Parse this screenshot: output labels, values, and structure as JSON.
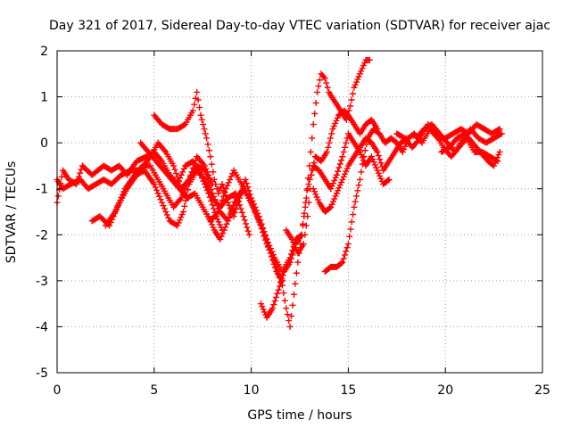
{
  "chart_data": {
    "type": "scatter",
    "title": "Day 321 of 2017, Sidereal Day-to-day VTEC variation (SDTVAR) for receiver ajac",
    "xlabel": "GPS time / hours",
    "ylabel": "SDTVAR / TECUs",
    "xlim": [
      0,
      25
    ],
    "ylim": [
      -5,
      2
    ],
    "xticks": [
      0,
      5,
      10,
      15,
      20,
      25
    ],
    "yticks": [
      -5,
      -4,
      -3,
      -2,
      -1,
      0,
      1,
      2
    ],
    "grid": true,
    "marker": "+",
    "color": "#ff0000",
    "tracks": [
      [
        [
          0,
          -1.3
        ],
        [
          0.3,
          -0.6
        ],
        [
          0.6,
          -0.8
        ],
        [
          1.0,
          -0.9
        ],
        [
          1.3,
          -0.5
        ],
        [
          1.8,
          -0.7
        ],
        [
          2.4,
          -0.5
        ],
        [
          2.8,
          -0.6
        ],
        [
          3.2,
          -0.5
        ],
        [
          3.6,
          -0.7
        ],
        [
          4.1,
          -0.4
        ],
        [
          4.6,
          -0.3
        ],
        [
          5.0,
          -0.2
        ],
        [
          5.4,
          -0.4
        ],
        [
          5.8,
          -0.7
        ],
        [
          6.2,
          -0.9
        ],
        [
          6.6,
          -0.5
        ],
        [
          7.0,
          -0.4
        ],
        [
          7.4,
          -0.7
        ],
        [
          7.8,
          -1.1
        ],
        [
          8.2,
          -1.6
        ],
        [
          8.5,
          -1.9
        ]
      ],
      [
        [
          1.8,
          -1.7
        ],
        [
          2.2,
          -1.6
        ],
        [
          2.7,
          -1.8
        ],
        [
          3.1,
          -1.4
        ],
        [
          3.6,
          -1.0
        ],
        [
          4.1,
          -0.7
        ],
        [
          4.5,
          -0.6
        ],
        [
          5.0,
          -0.9
        ],
        [
          5.4,
          -1.3
        ],
        [
          5.8,
          -1.7
        ],
        [
          6.2,
          -1.8
        ],
        [
          6.5,
          -1.5
        ],
        [
          6.8,
          -0.9
        ],
        [
          7.2,
          -0.6
        ],
        [
          7.6,
          -0.8
        ],
        [
          8.0,
          -1.2
        ],
        [
          8.4,
          -1.4
        ],
        [
          8.8,
          -1.2
        ],
        [
          9.2,
          -1.1
        ],
        [
          9.6,
          -1.6
        ],
        [
          9.9,
          -2.0
        ]
      ],
      [
        [
          2.5,
          -1.8
        ],
        [
          3.0,
          -1.5
        ],
        [
          3.5,
          -1.0
        ],
        [
          4.0,
          -0.7
        ],
        [
          4.4,
          -0.5
        ],
        [
          4.8,
          -0.5
        ],
        [
          5.2,
          -0.8
        ],
        [
          5.6,
          -1.1
        ],
        [
          6.0,
          -1.4
        ],
        [
          6.4,
          -1.2
        ],
        [
          6.8,
          -0.8
        ],
        [
          7.2,
          -0.5
        ],
        [
          7.6,
          -0.6
        ],
        [
          8.0,
          -1.1
        ],
        [
          8.4,
          -1.5
        ],
        [
          8.8,
          -1.7
        ],
        [
          9.2,
          -1.3
        ],
        [
          9.6,
          -1.0
        ],
        [
          10.0,
          -1.3
        ]
      ],
      [
        [
          0,
          -0.8
        ],
        [
          0.3,
          -1.0
        ],
        [
          0.7,
          -0.9
        ],
        [
          1.2,
          -0.8
        ],
        [
          1.6,
          -1.0
        ],
        [
          2.0,
          -0.9
        ],
        [
          2.4,
          -0.8
        ],
        [
          2.8,
          -0.9
        ],
        [
          3.3,
          -0.7
        ],
        [
          3.8,
          -0.6
        ],
        [
          4.3,
          -0.6
        ],
        [
          4.8,
          -0.3
        ],
        [
          5.2,
          0.0
        ],
        [
          5.6,
          -0.2
        ],
        [
          6.0,
          -0.5
        ],
        [
          6.4,
          -1.0
        ],
        [
          6.8,
          -0.8
        ],
        [
          7.2,
          -0.3
        ],
        [
          7.6,
          -0.5
        ],
        [
          8.0,
          -0.9
        ]
      ],
      [
        [
          4.3,
          0.0
        ],
        [
          4.7,
          -0.2
        ],
        [
          5.1,
          -0.4
        ],
        [
          5.5,
          -0.6
        ],
        [
          5.9,
          -0.8
        ],
        [
          6.3,
          -1.0
        ],
        [
          6.7,
          -1.2
        ],
        [
          7.1,
          -1.1
        ],
        [
          7.5,
          -1.4
        ],
        [
          7.9,
          -1.7
        ],
        [
          8.3,
          -1.5
        ],
        [
          8.7,
          -1.0
        ],
        [
          9.1,
          -0.6
        ],
        [
          9.5,
          -0.9
        ],
        [
          9.9,
          -1.2
        ],
        [
          10.3,
          -1.6
        ],
        [
          10.7,
          -2.0
        ],
        [
          11.0,
          -2.4
        ],
        [
          11.3,
          -2.8
        ],
        [
          11.6,
          -3.0
        ]
      ],
      [
        [
          5.0,
          0.6
        ],
        [
          5.4,
          0.4
        ],
        [
          5.8,
          0.3
        ],
        [
          6.2,
          0.3
        ],
        [
          6.6,
          0.4
        ],
        [
          7.0,
          0.7
        ],
        [
          7.2,
          1.1
        ],
        [
          7.4,
          0.6
        ],
        [
          7.7,
          0.1
        ],
        [
          7.9,
          -0.3
        ],
        [
          8.1,
          -0.8
        ],
        [
          8.3,
          -1.1
        ],
        [
          8.5,
          -0.9
        ],
        [
          8.8,
          -1.3
        ],
        [
          9.1,
          -1.6
        ],
        [
          9.4,
          -1.2
        ],
        [
          9.7,
          -0.8
        ],
        [
          10.0,
          -1.2
        ],
        [
          10.4,
          -1.6
        ],
        [
          10.8,
          -2.1
        ],
        [
          11.2,
          -2.5
        ],
        [
          11.6,
          -2.8
        ],
        [
          12.0,
          -2.5
        ],
        [
          12.3,
          -2.1
        ],
        [
          12.6,
          -2.0
        ]
      ],
      [
        [
          7.8,
          -1.6
        ],
        [
          8.1,
          -1.9
        ],
        [
          8.4,
          -2.1
        ],
        [
          8.8,
          -1.7
        ],
        [
          9.2,
          -1.2
        ],
        [
          9.6,
          -1.0
        ],
        [
          10.0,
          -1.3
        ],
        [
          10.4,
          -1.7
        ],
        [
          10.8,
          -2.2
        ],
        [
          11.2,
          -2.6
        ],
        [
          11.6,
          -3.1
        ],
        [
          11.8,
          -3.6
        ],
        [
          12.0,
          -4.0
        ],
        [
          12.2,
          -3.3
        ],
        [
          12.4,
          -2.6
        ],
        [
          12.6,
          -2.0
        ],
        [
          12.8,
          -1.3
        ],
        [
          13.0,
          -0.5
        ],
        [
          13.2,
          0.4
        ],
        [
          13.4,
          1.1
        ],
        [
          13.6,
          1.5
        ],
        [
          13.8,
          1.4
        ],
        [
          14.0,
          1.1
        ],
        [
          14.3,
          0.9
        ],
        [
          14.6,
          0.7
        ],
        [
          14.9,
          0.5
        ],
        [
          15.1,
          0.8
        ],
        [
          15.3,
          1.2
        ],
        [
          15.6,
          1.5
        ],
        [
          15.9,
          1.8
        ],
        [
          16.1,
          1.8
        ]
      ],
      [
        [
          10.5,
          -3.5
        ],
        [
          10.8,
          -3.8
        ],
        [
          11.1,
          -3.6
        ],
        [
          11.4,
          -3.2
        ],
        [
          11.7,
          -2.8
        ],
        [
          12.0,
          -2.6
        ],
        [
          12.3,
          -2.2
        ],
        [
          12.6,
          -2.0
        ],
        [
          12.9,
          -1.0
        ],
        [
          13.2,
          -0.5
        ],
        [
          13.5,
          -0.6
        ],
        [
          13.8,
          -0.8
        ],
        [
          14.1,
          -1.0
        ],
        [
          14.4,
          -0.7
        ],
        [
          14.7,
          -0.3
        ],
        [
          15.0,
          0.2
        ],
        [
          15.3,
          0.0
        ],
        [
          15.6,
          -0.2
        ],
        [
          15.9,
          -0.5
        ],
        [
          16.2,
          -0.3
        ],
        [
          16.5,
          -0.6
        ],
        [
          16.8,
          -0.9
        ],
        [
          17.1,
          -0.8
        ]
      ],
      [
        [
          13.2,
          -1.0
        ],
        [
          13.5,
          -1.3
        ],
        [
          13.8,
          -1.5
        ],
        [
          14.1,
          -1.4
        ],
        [
          14.4,
          -1.1
        ],
        [
          14.7,
          -0.8
        ],
        [
          15.0,
          -0.5
        ],
        [
          15.3,
          -0.3
        ],
        [
          15.6,
          -0.1
        ],
        [
          15.9,
          0.1
        ],
        [
          16.2,
          0.0
        ],
        [
          16.5,
          -0.2
        ],
        [
          16.8,
          -0.6
        ],
        [
          17.1,
          -0.4
        ],
        [
          17.4,
          -0.2
        ],
        [
          17.7,
          0.0
        ],
        [
          18.0,
          0.1
        ]
      ],
      [
        [
          13.8,
          -2.8
        ],
        [
          14.1,
          -2.7
        ],
        [
          14.4,
          -2.7
        ],
        [
          14.7,
          -2.6
        ],
        [
          15.0,
          -2.2
        ],
        [
          15.3,
          -1.4
        ],
        [
          15.6,
          -0.8
        ],
        [
          15.8,
          -0.3
        ],
        [
          16.0,
          0.1
        ],
        [
          16.3,
          0.3
        ],
        [
          16.6,
          0.2
        ],
        [
          16.9,
          0.0
        ],
        [
          17.2,
          0.1
        ],
        [
          17.5,
          0.0
        ],
        [
          17.8,
          -0.2
        ],
        [
          18.1,
          0.1
        ],
        [
          18.4,
          0.2
        ],
        [
          18.8,
          0.0
        ],
        [
          19.2,
          0.3
        ],
        [
          19.6,
          0.1
        ],
        [
          20.0,
          0.1
        ],
        [
          20.4,
          0.2
        ],
        [
          20.8,
          0.3
        ],
        [
          21.2,
          0.2
        ],
        [
          21.6,
          0.4
        ],
        [
          22.0,
          0.3
        ],
        [
          22.4,
          0.2
        ],
        [
          22.8,
          0.3
        ]
      ],
      [
        [
          11.8,
          -1.9
        ],
        [
          12.1,
          -2.1
        ],
        [
          12.4,
          -2.4
        ],
        [
          12.7,
          -2.2
        ],
        [
          12.9,
          -1.6
        ],
        [
          13.1,
          -0.7
        ],
        [
          13.3,
          -0.3
        ],
        [
          13.6,
          -0.4
        ],
        [
          13.9,
          -0.2
        ],
        [
          14.2,
          0.3
        ],
        [
          14.5,
          0.6
        ],
        [
          14.8,
          0.7
        ],
        [
          15.0,
          0.6
        ],
        [
          15.3,
          0.4
        ],
        [
          15.6,
          0.2
        ],
        [
          15.9,
          0.4
        ],
        [
          16.2,
          0.5
        ],
        [
          16.5,
          0.3
        ]
      ],
      [
        [
          17.5,
          0.2
        ],
        [
          17.9,
          0.1
        ],
        [
          18.3,
          -0.1
        ],
        [
          18.7,
          0.1
        ],
        [
          19.1,
          0.4
        ],
        [
          19.5,
          0.2
        ],
        [
          19.9,
          -0.1
        ],
        [
          20.3,
          -0.3
        ],
        [
          20.7,
          -0.1
        ],
        [
          21.1,
          0.1
        ],
        [
          21.5,
          -0.2
        ],
        [
          21.9,
          -0.2
        ],
        [
          22.3,
          -0.3
        ],
        [
          22.7,
          -0.4
        ]
      ],
      [
        [
          18.5,
          0.1
        ],
        [
          18.9,
          0.3
        ],
        [
          19.3,
          0.4
        ],
        [
          19.7,
          0.2
        ],
        [
          20.1,
          0.0
        ],
        [
          20.5,
          -0.2
        ],
        [
          20.9,
          0.1
        ],
        [
          21.3,
          0.3
        ],
        [
          21.7,
          0.1
        ],
        [
          22.1,
          0.0
        ],
        [
          22.5,
          0.1
        ],
        [
          22.9,
          0.2
        ]
      ],
      [
        [
          19.8,
          -0.2
        ],
        [
          20.2,
          -0.1
        ],
        [
          20.6,
          0.1
        ],
        [
          21.0,
          0.2
        ],
        [
          21.4,
          0.0
        ],
        [
          21.8,
          -0.2
        ],
        [
          22.2,
          -0.4
        ],
        [
          22.5,
          -0.5
        ],
        [
          22.8,
          -0.2
        ]
      ]
    ]
  }
}
